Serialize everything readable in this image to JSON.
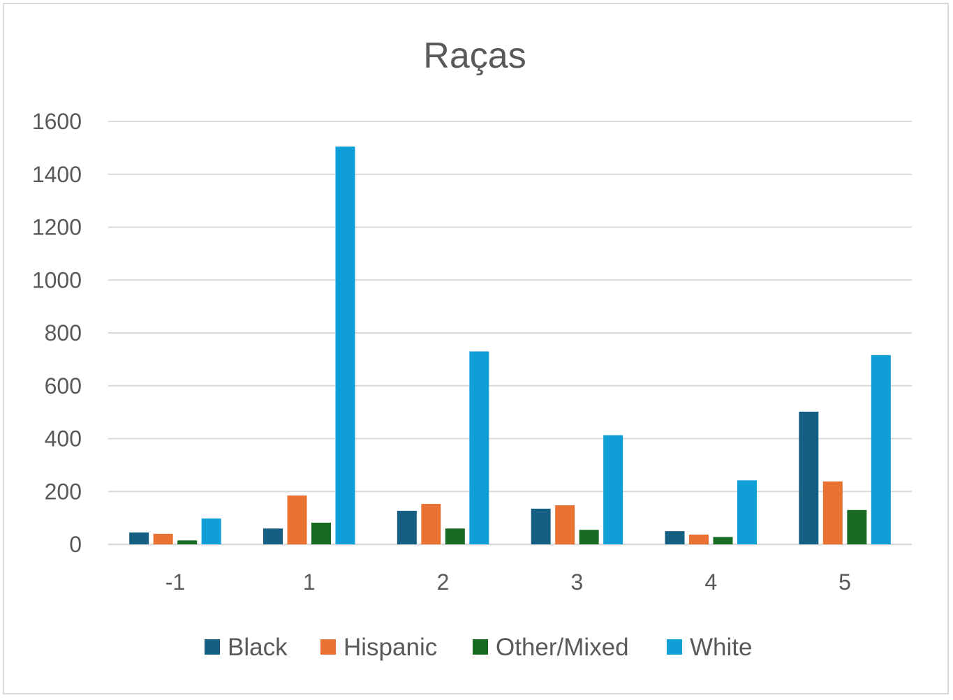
{
  "chart_data": {
    "type": "bar",
    "title": "Raças",
    "xlabel": "",
    "ylabel": "",
    "categories": [
      "-1",
      "1",
      "2",
      "3",
      "4",
      "5"
    ],
    "ylim": [
      0,
      1600
    ],
    "yticks": [
      "0",
      "200",
      "400",
      "600",
      "800",
      "1000",
      "1200",
      "1400",
      "1600"
    ],
    "grid": true,
    "legend": "bottom",
    "series": [
      {
        "name": "Black",
        "color": "#156082",
        "values": [
          45,
          60,
          127,
          135,
          50,
          502
        ]
      },
      {
        "name": "Hispanic",
        "color": "#E97132",
        "values": [
          40,
          185,
          153,
          148,
          37,
          238
        ]
      },
      {
        "name": "Other/Mixed",
        "color": "#196B24",
        "values": [
          15,
          82,
          60,
          55,
          28,
          130
        ]
      },
      {
        "name": "White",
        "color": "#0F9ED5",
        "values": [
          98,
          1505,
          730,
          413,
          242,
          716
        ]
      }
    ]
  }
}
